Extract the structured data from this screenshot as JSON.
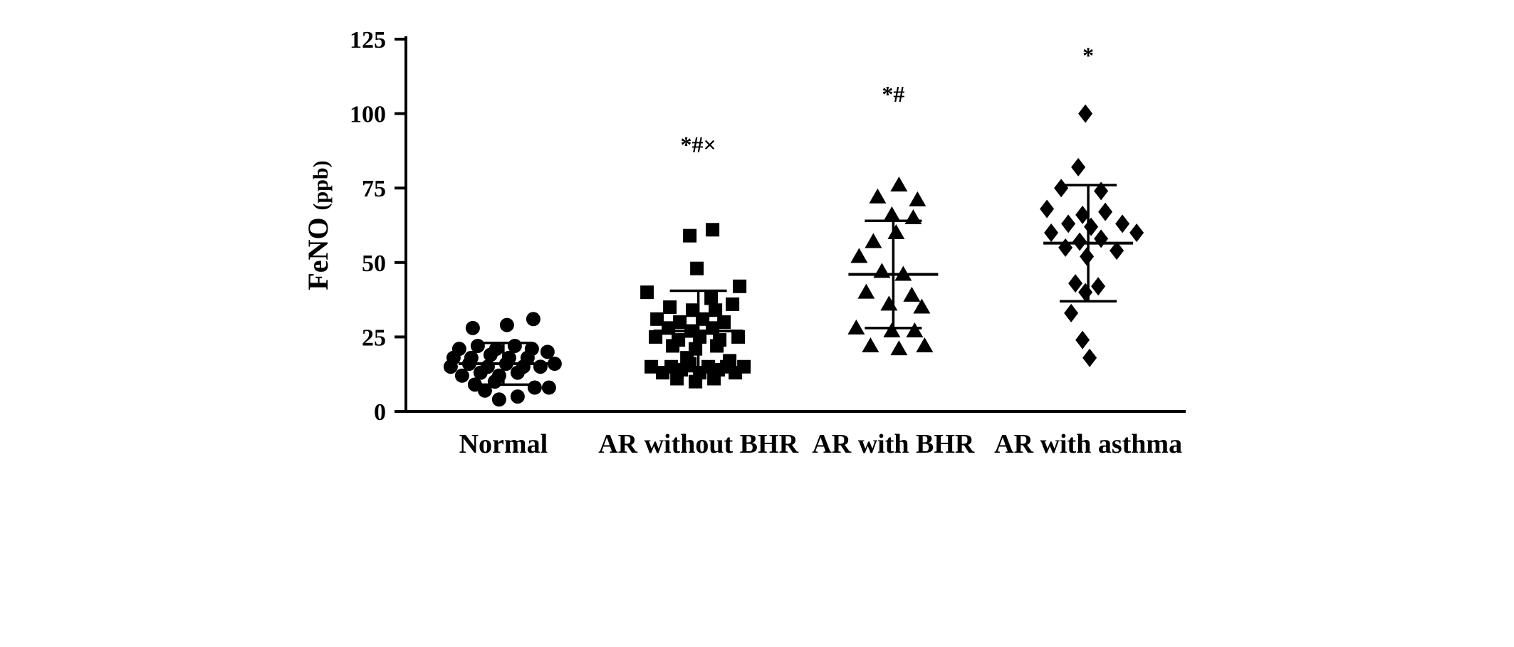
{
  "figure": {
    "background": "#ffffff"
  },
  "chart_data": {
    "type": "scatter",
    "title": "",
    "xlabel": "",
    "ylabel": "FeNO (ppb)",
    "ylabel_main": "FeNO",
    "ylabel_unit": "(ppb)",
    "ylim": [
      0,
      125
    ],
    "yticks": [
      0,
      25,
      50,
      75,
      100,
      125
    ],
    "grid": "off",
    "legend": "none",
    "error_bar_style": "mean with upper/lower caps",
    "categories": [
      "Normal",
      "AR without BHR",
      "AR with BHR",
      "AR with asthma"
    ],
    "colors": {
      "marker": "#000000",
      "axis": "#000000",
      "text": "#000000"
    },
    "groups": [
      {
        "name": "Normal",
        "marker": "circle",
        "annotation": "",
        "annotation_y": null,
        "mean": 16,
        "error_low": 9,
        "error_high": 23,
        "points": [
          [
            42,
            31
          ],
          [
            5,
            29
          ],
          [
            -43,
            28
          ],
          [
            -62,
            21
          ],
          [
            -36,
            22
          ],
          [
            -10,
            21
          ],
          [
            16,
            22
          ],
          [
            40,
            21
          ],
          [
            62,
            20
          ],
          [
            -70,
            18
          ],
          [
            -45,
            18
          ],
          [
            -18,
            19
          ],
          [
            8,
            18
          ],
          [
            34,
            18
          ],
          [
            -74,
            15
          ],
          [
            -48,
            16
          ],
          [
            -22,
            15
          ],
          [
            4,
            16
          ],
          [
            28,
            15
          ],
          [
            52,
            15
          ],
          [
            72,
            16
          ],
          [
            -58,
            12
          ],
          [
            -32,
            13
          ],
          [
            -6,
            12
          ],
          [
            20,
            13
          ],
          [
            -40,
            9
          ],
          [
            -12,
            10
          ],
          [
            -26,
            7
          ],
          [
            44,
            8
          ],
          [
            64,
            8
          ],
          [
            -6,
            4
          ],
          [
            20,
            5
          ]
        ]
      },
      {
        "name": "AR without BHR",
        "marker": "square",
        "annotation": "*#×",
        "annotation_y": 87,
        "mean": 27,
        "error_low": 13.5,
        "error_high": 40.5,
        "points": [
          [
            20,
            61
          ],
          [
            -12,
            59
          ],
          [
            -2,
            48
          ],
          [
            58,
            42
          ],
          [
            -72,
            40
          ],
          [
            18,
            38
          ],
          [
            -40,
            35
          ],
          [
            -8,
            34
          ],
          [
            24,
            34
          ],
          [
            48,
            36
          ],
          [
            -58,
            31
          ],
          [
            -26,
            30
          ],
          [
            6,
            31
          ],
          [
            36,
            30
          ],
          [
            -42,
            28
          ],
          [
            -10,
            27
          ],
          [
            20,
            28
          ],
          [
            -60,
            25
          ],
          [
            -28,
            24
          ],
          [
            2,
            25
          ],
          [
            30,
            24
          ],
          [
            56,
            25
          ],
          [
            -36,
            22
          ],
          [
            -4,
            21
          ],
          [
            26,
            22
          ],
          [
            -16,
            18
          ],
          [
            44,
            17
          ],
          [
            -66,
            15
          ],
          [
            -38,
            15
          ],
          [
            -12,
            16
          ],
          [
            14,
            15
          ],
          [
            40,
            15
          ],
          [
            64,
            15
          ],
          [
            -50,
            13
          ],
          [
            -24,
            14
          ],
          [
            2,
            13
          ],
          [
            28,
            14
          ],
          [
            52,
            13
          ],
          [
            -30,
            11
          ],
          [
            -4,
            10
          ],
          [
            22,
            11
          ]
        ]
      },
      {
        "name": "AR with BHR",
        "marker": "triangle",
        "annotation": "*#",
        "annotation_y": 104,
        "mean": 46,
        "error_low": 28,
        "error_high": 64,
        "points": [
          [
            8,
            76
          ],
          [
            -22,
            72
          ],
          [
            34,
            71
          ],
          [
            -2,
            66
          ],
          [
            28,
            65
          ],
          [
            4,
            60
          ],
          [
            -28,
            57
          ],
          [
            -48,
            52
          ],
          [
            -16,
            47
          ],
          [
            14,
            46
          ],
          [
            -38,
            40
          ],
          [
            26,
            39
          ],
          [
            -6,
            36
          ],
          [
            40,
            35
          ],
          [
            -52,
            28
          ],
          [
            -2,
            27
          ],
          [
            30,
            27
          ],
          [
            -32,
            22
          ],
          [
            8,
            21
          ],
          [
            44,
            22
          ]
        ]
      },
      {
        "name": "AR with asthma",
        "marker": "diamond",
        "annotation": "*",
        "annotation_y": 117,
        "mean": 56.5,
        "error_low": 37,
        "error_high": 76,
        "points": [
          [
            -4,
            100
          ],
          [
            -14,
            82
          ],
          [
            -38,
            75
          ],
          [
            18,
            74
          ],
          [
            -58,
            68
          ],
          [
            -8,
            66
          ],
          [
            24,
            67
          ],
          [
            -28,
            63
          ],
          [
            48,
            63
          ],
          [
            4,
            62
          ],
          [
            -52,
            60
          ],
          [
            68,
            60
          ],
          [
            18,
            58
          ],
          [
            -12,
            57
          ],
          [
            -32,
            55
          ],
          [
            40,
            54
          ],
          [
            -2,
            52
          ],
          [
            -18,
            43
          ],
          [
            14,
            42
          ],
          [
            -4,
            40
          ],
          [
            -24,
            33
          ],
          [
            -8,
            24
          ],
          [
            2,
            18
          ]
        ]
      }
    ]
  }
}
